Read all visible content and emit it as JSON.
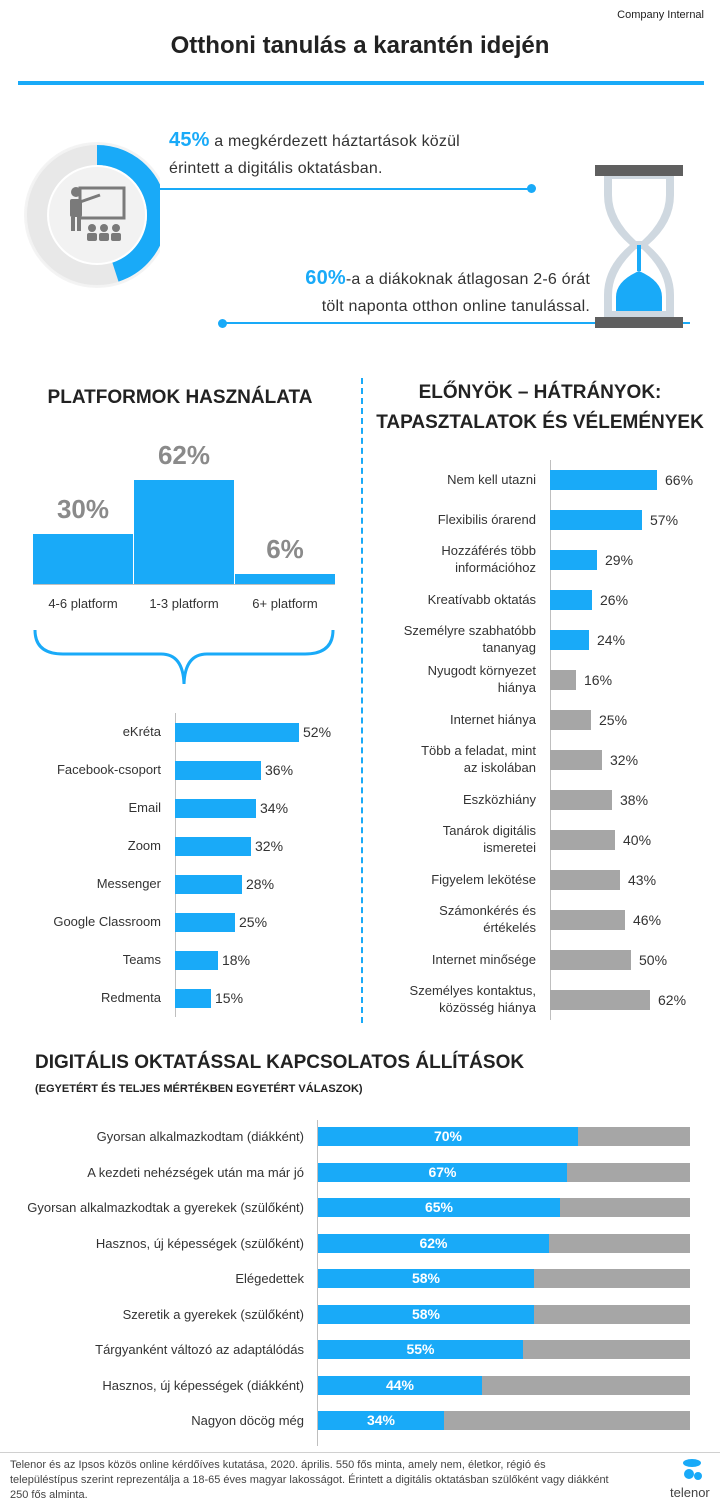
{
  "company_label": "Company Internal",
  "title": "Otthoni tanulás a karantén idején",
  "stats": [
    {
      "value": "45%",
      "text_line1": " a megkérdezett háztartások közül",
      "text_line2": "érintett a digitális oktatásban.",
      "fraction": 0.45
    },
    {
      "value": "60%",
      "text_line1": "-a a diákoknak átlagosan 2-6 órát",
      "text_line2": "tölt naponta otthon online tanulással.",
      "fraction": 0.6
    }
  ],
  "icons": [
    "presentation-icon",
    "hourglass-icon"
  ],
  "colors": {
    "accent": "#19aaf8",
    "grey": "#a6a6a6",
    "text": "#222222"
  },
  "platforms": {
    "title": "PLATFORMOK HASZNÁLATA",
    "labels": [
      "30%",
      "62%",
      "6%"
    ],
    "categories": [
      "4-6 platform",
      "1-3 platform",
      "6+ platform"
    ]
  },
  "pros_cons": {
    "title_line1": "ELŐNYÖK – HÁTRÁNYOK:",
    "title_line2": "TAPASZTALATOK ÉS VÉLEMÉNYEK"
  },
  "statements": {
    "title": "DIGITÁLIS OKTATÁSSAL KAPCSOLATOS ÁLLÍTÁSOK",
    "subtitle": "(EGYETÉRT ÉS TELJES MÉRTÉKBEN EGYETÉRT VÁLASZOK)"
  },
  "chart_data": [
    {
      "type": "bar",
      "categories": [
        "4-6 platform",
        "1-3 platform",
        "6+ platform"
      ],
      "values": [
        30,
        62,
        6
      ],
      "title": "PLATFORMOK HASZNÁLATA"
    },
    {
      "type": "bar",
      "orientation": "horizontal",
      "categories": [
        "eKréta",
        "Facebook-csoport",
        "Email",
        "Zoom",
        "Messenger",
        "Google Classroom",
        "Teams",
        "Redmenta"
      ],
      "values": [
        52,
        36,
        34,
        32,
        28,
        25,
        18,
        15
      ],
      "labels": [
        "52%",
        "36%",
        "34%",
        "32%",
        "28%",
        "25%",
        "18%",
        "15%"
      ]
    },
    {
      "type": "bar",
      "orientation": "horizontal",
      "title": "ELŐNYÖK – HÁTRÁNYOK: TAPASZTALATOK ÉS VÉLEMÉNYEK",
      "categories": [
        "Nem kell utazni",
        "Flexibilis órarend",
        "Hozzáférés több információhoz",
        "Kreatívabb oktatás",
        "Személyre szabhatóbb tananyag",
        "Nyugodt környezet hiánya",
        "Internet hiánya",
        "Több a feladat, mint az iskolában",
        "Eszközhiány",
        "Tanárok digitális ismeretei",
        "Figyelem lekötése",
        "Számonkérés és értékelés",
        "Internet minősége",
        "Személyes kontaktus, közösség hiánya"
      ],
      "label_lines": [
        [
          "Nem kell utazni"
        ],
        [
          "Flexibilis órarend"
        ],
        [
          "Hozzáférés több",
          "információhoz"
        ],
        [
          "Kreatívabb oktatás"
        ],
        [
          "Személyre szabhatóbb",
          "tananyag"
        ],
        [
          "Nyugodt környezet",
          "hiánya"
        ],
        [
          "Internet hiánya"
        ],
        [
          "Több a feladat, mint",
          "az iskolában"
        ],
        [
          "Eszközhiány"
        ],
        [
          "Tanárok digitális",
          "ismeretei"
        ],
        [
          "Figyelem lekötése"
        ],
        [
          "Számonkérés és",
          "értékelés"
        ],
        [
          "Internet minősége"
        ],
        [
          "Személyes kontaktus,",
          "közösség hiánya"
        ]
      ],
      "values": [
        66,
        57,
        29,
        26,
        24,
        16,
        25,
        32,
        38,
        40,
        43,
        46,
        50,
        62
      ],
      "labels": [
        "66%",
        "57%",
        "29%",
        "26%",
        "24%",
        "16%",
        "25%",
        "32%",
        "38%",
        "40%",
        "43%",
        "46%",
        "50%",
        "62%"
      ],
      "groups": [
        "advantage",
        "advantage",
        "advantage",
        "advantage",
        "advantage",
        "disadvantage",
        "disadvantage",
        "disadvantage",
        "disadvantage",
        "disadvantage",
        "disadvantage",
        "disadvantage",
        "disadvantage",
        "disadvantage"
      ]
    },
    {
      "type": "bar",
      "orientation": "horizontal",
      "stacked": true,
      "title": "DIGITÁLIS OKTATÁSSAL KAPCSOLATOS ÁLLÍTÁSOK",
      "subtitle": "(EGYETÉRT ÉS TELJES MÉRTÉKBEN EGYETÉRT VÁLASZOK)",
      "categories": [
        "Gyorsan alkalmazkodtam (diákként)",
        "A kezdeti nehézségek után ma már jó",
        "Gyorsan alkalmazkodtak a gyerekek (szülőként)",
        "Hasznos, új képességek (szülőként)",
        "Elégedettek",
        "Szeretik a gyerekek (szülőként)",
        "Tárgyanként változó az adaptálódás",
        "Hasznos, új képességek (diákként)",
        "Nagyon döcög még"
      ],
      "values": [
        70,
        67,
        65,
        62,
        58,
        58,
        55,
        44,
        34
      ],
      "labels": [
        "70%",
        "67%",
        "65%",
        "62%",
        "58%",
        "58%",
        "55%",
        "44%",
        "34%"
      ],
      "xlim": [
        0,
        100
      ]
    }
  ],
  "footnote": "Telenor és az Ipsos közös online kérdőíves kutatása, 2020. április. 550 fős minta, amely nem, életkor, régió és településtípus szerint reprezentálja a 18-65 éves magyar lakosságot. Érintett a digitális oktatásban szülőként vagy diákként 250 fős alminta.",
  "brand_name": "telenor"
}
